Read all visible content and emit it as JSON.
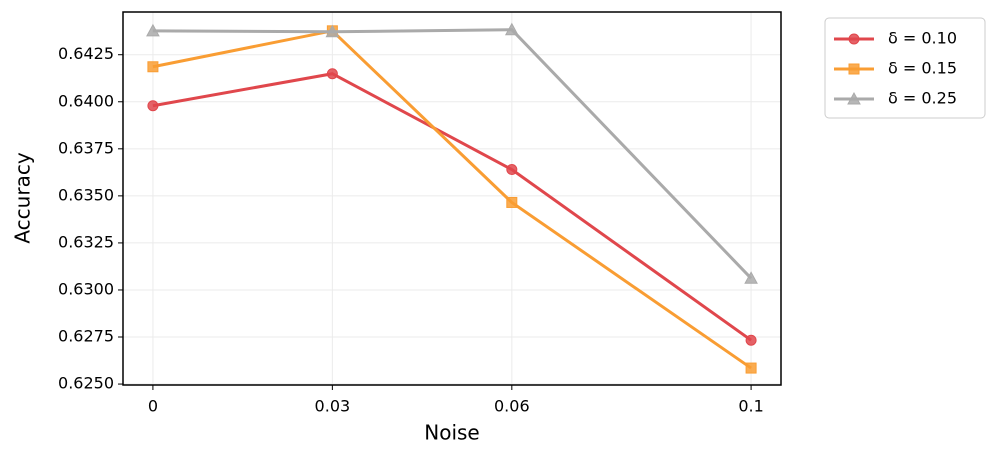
{
  "chart_data": {
    "type": "line",
    "xlabel": "Noise",
    "ylabel": "Accuracy",
    "x": [
      0,
      0.03,
      0.06,
      0.1
    ],
    "xlim": [
      -0.005,
      0.105
    ],
    "xticks": [
      0,
      0.03,
      0.06,
      0.1
    ],
    "ylim": [
      0.62495,
      0.64477
    ],
    "yticks": [
      {
        "value": 0.625,
        "label": "0.6250"
      },
      0.6275,
      {
        "value": 0.63,
        "label": "0.6300"
      },
      0.6325,
      {
        "value": 0.635,
        "label": "0.6350"
      },
      0.6375,
      {
        "value": 0.64,
        "label": "0.6400"
      },
      0.6425
    ],
    "grid": true,
    "legend": "outside upper right",
    "series": [
      {
        "name": "δ = 0.10",
        "color": "#e0474c",
        "marker": "circle",
        "values": [
          0.63979,
          0.64149,
          0.6364,
          0.62733
        ]
      },
      {
        "name": "δ = 0.15",
        "color": "#f99d33",
        "marker": "square",
        "values": [
          0.64186,
          0.64377,
          0.63465,
          0.62585
        ]
      },
      {
        "name": "δ = 0.25",
        "color": "#aaaaaa",
        "marker": "triangle",
        "values": [
          0.64377,
          0.64372,
          0.64383,
          0.63062
        ]
      }
    ]
  }
}
